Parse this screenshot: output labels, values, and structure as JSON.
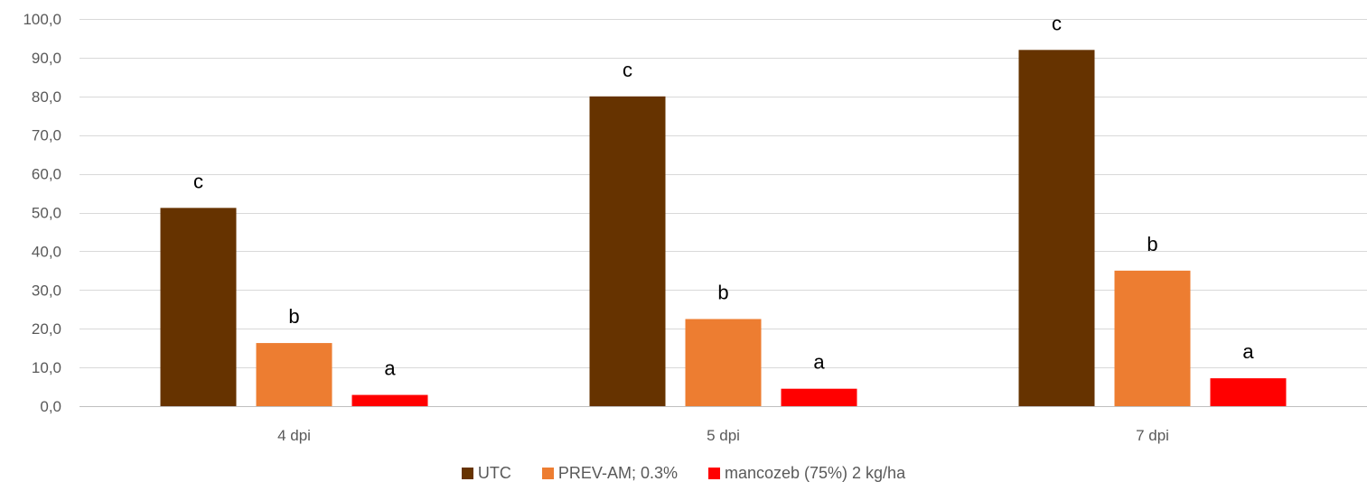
{
  "chart_data": {
    "type": "bar",
    "categories": [
      "4 dpi",
      "5 dpi",
      "7 dpi"
    ],
    "series": [
      {
        "name": "UTC",
        "color": "#663300",
        "values": [
          51.2,
          80.0,
          92.0
        ],
        "letters": [
          "c",
          "c",
          "c"
        ]
      },
      {
        "name": "PREV-AM; 0.3%",
        "color": "#ED7D31",
        "values": [
          16.3,
          22.5,
          35.0
        ],
        "letters": [
          "b",
          "b",
          "b"
        ]
      },
      {
        "name": "mancozeb (75%) 2 kg/ha",
        "color": "#FF0000",
        "values": [
          2.9,
          4.5,
          7.2
        ],
        "letters": [
          "a",
          "a",
          "a"
        ]
      }
    ],
    "yticks": [
      "0,0",
      "10,0",
      "20,0",
      "30,0",
      "40,0",
      "50,0",
      "60,0",
      "70,0",
      "80,0",
      "90,0",
      "100,0"
    ],
    "ylim": [
      0,
      100
    ],
    "grid": true,
    "legend_position": "bottom"
  }
}
